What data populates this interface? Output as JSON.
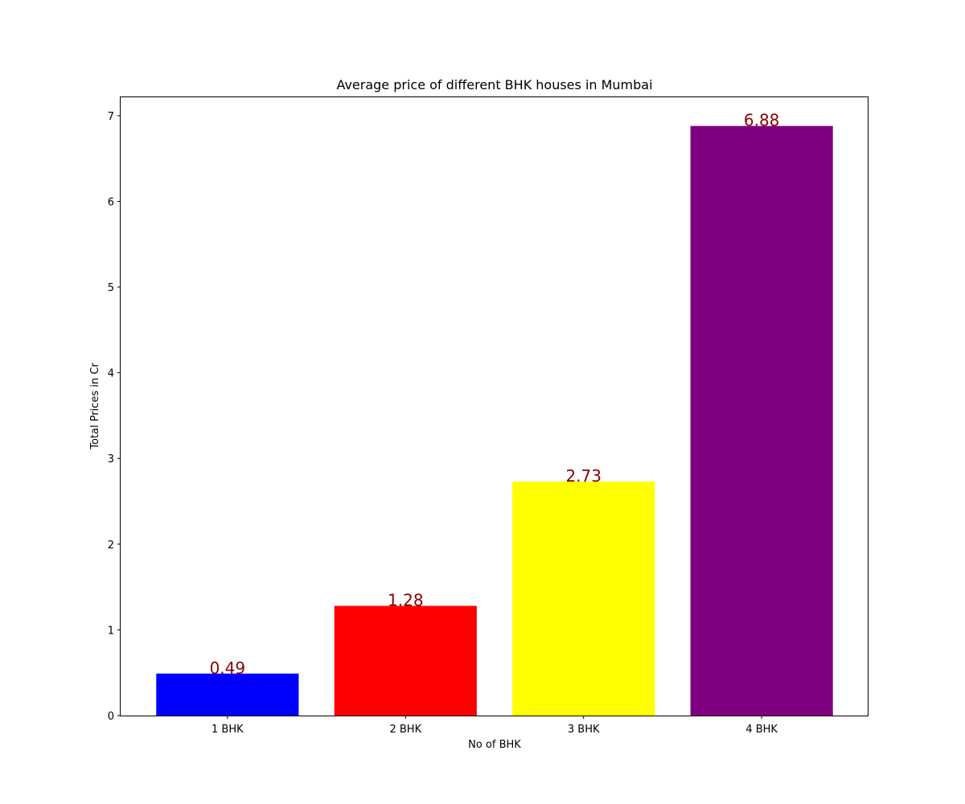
{
  "chart_data": {
    "type": "bar",
    "title": "Average price of different BHK houses in Mumbai",
    "xlabel": "No of BHK",
    "ylabel": "Total Prices in Cr",
    "categories": [
      "1 BHK",
      "2 BHK",
      "3 BHK",
      "4 BHK"
    ],
    "values": [
      0.49,
      1.28,
      2.73,
      6.88
    ],
    "data_labels": [
      "0.49",
      "1.28",
      "2.73",
      "6.88"
    ],
    "bar_colors": [
      "#0000ff",
      "#ff0000",
      "#ffff00",
      "#800080"
    ],
    "data_label_color": "#8b0000",
    "ylim": [
      0,
      7.224
    ],
    "yticks": [
      0,
      1,
      2,
      3,
      4,
      5,
      6,
      7
    ],
    "grid": false,
    "legend": "none"
  }
}
